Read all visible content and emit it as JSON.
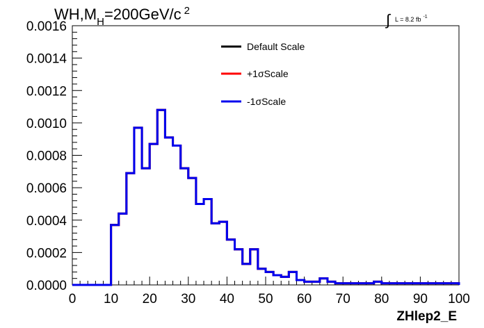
{
  "chart_data": {
    "type": "histogram",
    "title": {
      "main": "WH,M",
      "sub": "H",
      "rest": "=200GeV/c",
      "sup": "2"
    },
    "lumi": {
      "label": "L = 8.2 fb",
      "sup": "-1"
    },
    "xlabel": "ZHlep2_E",
    "ylabel": "",
    "xlim": [
      0,
      100
    ],
    "ylim": [
      0,
      0.0016
    ],
    "xticks": [
      "0",
      "10",
      "20",
      "30",
      "40",
      "50",
      "60",
      "70",
      "80",
      "90",
      "100"
    ],
    "yticks": [
      "0.0000",
      "0.0002",
      "0.0004",
      "0.0006",
      "0.0008",
      "0.0010",
      "0.0012",
      "0.0014",
      "0.0016"
    ],
    "bin_width": 2,
    "bin_start": 0,
    "series": [
      {
        "name": "Default Scale",
        "color": "#000000",
        "values": [
          0,
          0,
          0,
          0,
          0,
          0.00037,
          0.00044,
          0.00069,
          0.00097,
          0.00072,
          0.00087,
          0.00108,
          0.00091,
          0.00086,
          0.00072,
          0.00066,
          0.0005,
          0.00053,
          0.00038,
          0.00039,
          0.00028,
          0.00022,
          0.00013,
          0.00022,
          0.0001,
          8e-05,
          6e-05,
          5e-05,
          8e-05,
          3e-05,
          2e-05,
          2e-05,
          4e-05,
          2e-05,
          1e-05,
          1e-05,
          1e-05,
          1e-05,
          1e-05,
          2e-05,
          1e-05,
          1e-05,
          1e-05,
          1e-05,
          1e-05,
          1e-05,
          1e-05,
          1e-05,
          1e-05,
          1e-05
        ]
      },
      {
        "name": "+1σScale",
        "color": "#ff0000",
        "values": [
          0,
          0,
          0,
          0,
          0,
          0.00037,
          0.00044,
          0.00069,
          0.00097,
          0.00072,
          0.00087,
          0.00108,
          0.00091,
          0.00086,
          0.00072,
          0.00066,
          0.0005,
          0.00053,
          0.00038,
          0.00039,
          0.00028,
          0.00022,
          0.00013,
          0.00022,
          0.0001,
          8e-05,
          6e-05,
          5e-05,
          8e-05,
          3e-05,
          2e-05,
          2e-05,
          4e-05,
          2e-05,
          1e-05,
          1e-05,
          1e-05,
          1e-05,
          1e-05,
          2e-05,
          1e-05,
          1e-05,
          1e-05,
          1e-05,
          1e-05,
          1e-05,
          1e-05,
          1e-05,
          1e-05,
          1e-05
        ]
      },
      {
        "name": "-1σScale",
        "color": "#0000ee",
        "values": [
          0,
          0,
          0,
          0,
          0,
          0.00037,
          0.00044,
          0.00069,
          0.00097,
          0.00072,
          0.00087,
          0.00108,
          0.00091,
          0.00086,
          0.00072,
          0.00066,
          0.0005,
          0.00053,
          0.00038,
          0.00039,
          0.00028,
          0.00022,
          0.00013,
          0.00022,
          0.0001,
          8e-05,
          6e-05,
          5e-05,
          8e-05,
          3e-05,
          2e-05,
          2e-05,
          4e-05,
          2e-05,
          1e-05,
          1e-05,
          1e-05,
          1e-05,
          1e-05,
          2e-05,
          1e-05,
          1e-05,
          1e-05,
          1e-05,
          1e-05,
          1e-05,
          1e-05,
          1e-05,
          1e-05,
          1e-05
        ]
      }
    ],
    "legend_position": "top-center",
    "grid": false
  }
}
